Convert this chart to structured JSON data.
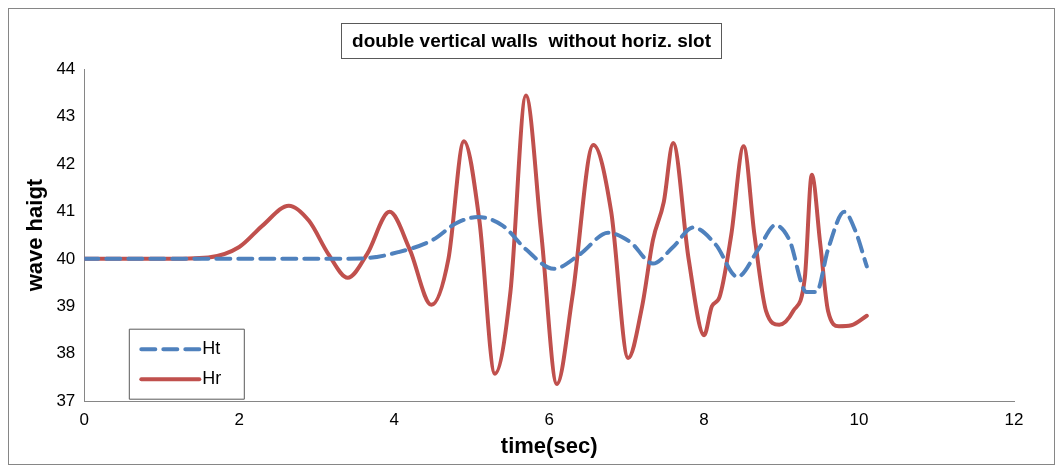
{
  "chart_data": {
    "type": "line",
    "title": "double vertical walls  without horiz. slot",
    "xlabel": "time(sec)",
    "ylabel": "wave haigt",
    "xlim": [
      0,
      12
    ],
    "xticks": [
      0,
      2,
      4,
      6,
      8,
      10,
      12
    ],
    "ylim": [
      37,
      44
    ],
    "yticks": [
      37,
      38,
      39,
      40,
      41,
      42,
      43,
      44
    ],
    "grid": false,
    "legend": "bottom left",
    "marker": "none",
    "series": [
      {
        "name": "Ht",
        "color": "#4f81bd",
        "line_style": "dashed",
        "x": [
          0,
          1,
          2,
          3,
          3.6,
          4.05,
          4.5,
          4.8,
          5.08,
          5.4,
          5.7,
          6.06,
          6.4,
          6.76,
          7.05,
          7.34,
          7.6,
          7.86,
          8.15,
          8.43,
          8.7,
          8.92,
          9.1,
          9.32,
          9.45,
          9.6,
          9.81,
          9.95,
          10.1
        ],
        "values": [
          40,
          40,
          40,
          40,
          40.01,
          40.14,
          40.4,
          40.75,
          40.88,
          40.7,
          40.2,
          39.79,
          40.1,
          40.55,
          40.35,
          39.9,
          40.25,
          40.66,
          40.3,
          39.62,
          40.2,
          40.71,
          40.4,
          39.3,
          39.3,
          40.2,
          40.99,
          40.6,
          39.84
        ]
      },
      {
        "name": "Hr",
        "color": "#c0504d",
        "line_style": "solid",
        "x": [
          0,
          1,
          1.6,
          2,
          2.3,
          2.64,
          2.9,
          3.15,
          3.4,
          3.65,
          3.94,
          4.2,
          4.48,
          4.7,
          4.9,
          5.1,
          5.3,
          5.5,
          5.7,
          5.9,
          6.1,
          6.3,
          6.57,
          6.8,
          7.02,
          7.2,
          7.34,
          7.48,
          7.6,
          7.8,
          8.0,
          8.1,
          8.2,
          8.35,
          8.51,
          8.65,
          8.8,
          8.97,
          9.15,
          9.3,
          9.39,
          9.5,
          9.6,
          9.74,
          9.9,
          10.1
        ],
        "values": [
          40,
          40,
          40.03,
          40.25,
          40.7,
          41.12,
          40.8,
          40.1,
          39.6,
          40.1,
          40.99,
          40.2,
          39.03,
          40.0,
          42.48,
          40.8,
          37.58,
          39.3,
          43.44,
          40.5,
          37.36,
          39.2,
          42.4,
          41.0,
          37.91,
          39.0,
          40.4,
          41.2,
          42.44,
          40.0,
          38.39,
          39.0,
          39.2,
          40.5,
          42.37,
          40.5,
          38.9,
          38.61,
          38.9,
          39.6,
          41.77,
          40.3,
          38.9,
          38.58,
          38.6,
          38.8
        ]
      }
    ]
  }
}
